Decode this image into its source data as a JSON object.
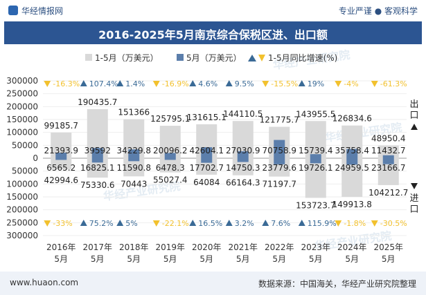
{
  "header": {
    "brand": "华经情报网",
    "tagline": "专业严谨 ● 客观科学",
    "title": "2016-2025年5月南京综合保税区进、出口额"
  },
  "footer": {
    "website": "www.huaon.com",
    "source": "数据来源：中国海关，华经产业研究院整理"
  },
  "watermark": "华经产业研究院",
  "side_labels": {
    "export": "出口",
    "import": "进口"
  },
  "colors": {
    "cumulative_bar": "#d9d9d9",
    "monthly_bar": "#5b7eab",
    "up": "#3a6a96",
    "down": "#f2c12e",
    "title_bg": "#2c5592"
  },
  "chart_data": {
    "type": "bar",
    "title": "2016-2025年5月南京综合保税区进、出口额",
    "categories": [
      "2016年\n5月",
      "2017年\n5月",
      "2018年\n5月",
      "2019年\n5月",
      "2020年\n5月",
      "2021年\n5月",
      "2022年\n5月",
      "2023年\n5月",
      "2024年\n5月",
      "2025年\n5月"
    ],
    "category_lines": [
      [
        "2016年",
        "5月"
      ],
      [
        "2017年",
        "5月"
      ],
      [
        "2018年",
        "5月"
      ],
      [
        "2019年",
        "5月"
      ],
      [
        "2020年",
        "5月"
      ],
      [
        "2021年",
        "5月"
      ],
      [
        "2022年",
        "5月"
      ],
      [
        "2023年",
        "5月"
      ],
      [
        "2024年",
        "5月"
      ],
      [
        "2025年",
        "5月"
      ]
    ],
    "legend": [
      "1-5月（万美元）",
      "5月（万美元）",
      "1-5月同比增速(%)"
    ],
    "ylim": [
      -300000,
      300000
    ],
    "yticks": [
      300000,
      250000,
      200000,
      150000,
      100000,
      50000,
      0,
      50000,
      100000,
      150000,
      200000,
      250000,
      300000
    ],
    "ytick_values": [
      300000,
      250000,
      200000,
      150000,
      100000,
      50000,
      0,
      -50000,
      -100000,
      -150000,
      -200000,
      -250000,
      -300000
    ],
    "export": {
      "cumulative": [
        99185.7,
        190435.7,
        151366,
        125795.1,
        131615.1,
        144110.5,
        121775.7,
        143955.5,
        126834.6,
        48950.4
      ],
      "cumulative_labels": [
        "99185.7",
        "190435.7",
        "151366",
        "125795.1",
        "131615.1",
        "144110.5",
        "121775.7",
        "143955.5",
        "126834.6",
        "48950.4"
      ],
      "monthly": [
        21393.9,
        39592,
        34229.8,
        20096.2,
        42604.1,
        27030.9,
        70758.9,
        15739.4,
        35758.4,
        11432.7
      ],
      "monthly_labels": [
        "21393.9",
        "39592",
        "34229.8",
        "20096.2",
        "42604.1",
        "27030.9",
        "70758.9",
        "15739.4",
        "35758.4",
        "11432.7"
      ],
      "yoy_labels": [
        "-16.3%",
        "107.4%",
        "1.4%",
        "-16.9%",
        "4.6%",
        "9.5%",
        "-15.5%",
        "19%",
        "-4%",
        "-61.3%"
      ],
      "yoy_up": [
        false,
        true,
        true,
        false,
        true,
        true,
        false,
        true,
        false,
        false
      ]
    },
    "import": {
      "cumulative": [
        42994.6,
        75330.6,
        70443,
        55027.4,
        64084,
        66164.3,
        71197.7,
        153723.7,
        149913.8,
        104212.7
      ],
      "cumulative_labels": [
        "42994.6",
        "75330.6",
        "70443",
        "55027.4",
        "64084",
        "66164.3",
        "71197.7",
        "153723.7",
        "149913.8",
        "104212.7"
      ],
      "monthly": [
        6565.2,
        16825.1,
        11590.8,
        6478.3,
        17702.7,
        14750.3,
        23779.6,
        19726.1,
        24959.5,
        23166.7
      ],
      "monthly_labels": [
        "6565.2",
        "16825.1",
        "11590.8",
        "6478.3",
        "17702.7",
        "14750.3",
        "23779.6",
        "19726.1",
        "24959.5",
        "23166.7"
      ],
      "yoy_labels": [
        "-33%",
        "75.2%",
        "5%",
        "-22.1%",
        "16.5%",
        "3.2%",
        "7.6%",
        "115.9%",
        "-1.8%",
        "-30.5%"
      ],
      "yoy_up": [
        false,
        true,
        true,
        false,
        true,
        true,
        true,
        true,
        false,
        false
      ]
    }
  }
}
